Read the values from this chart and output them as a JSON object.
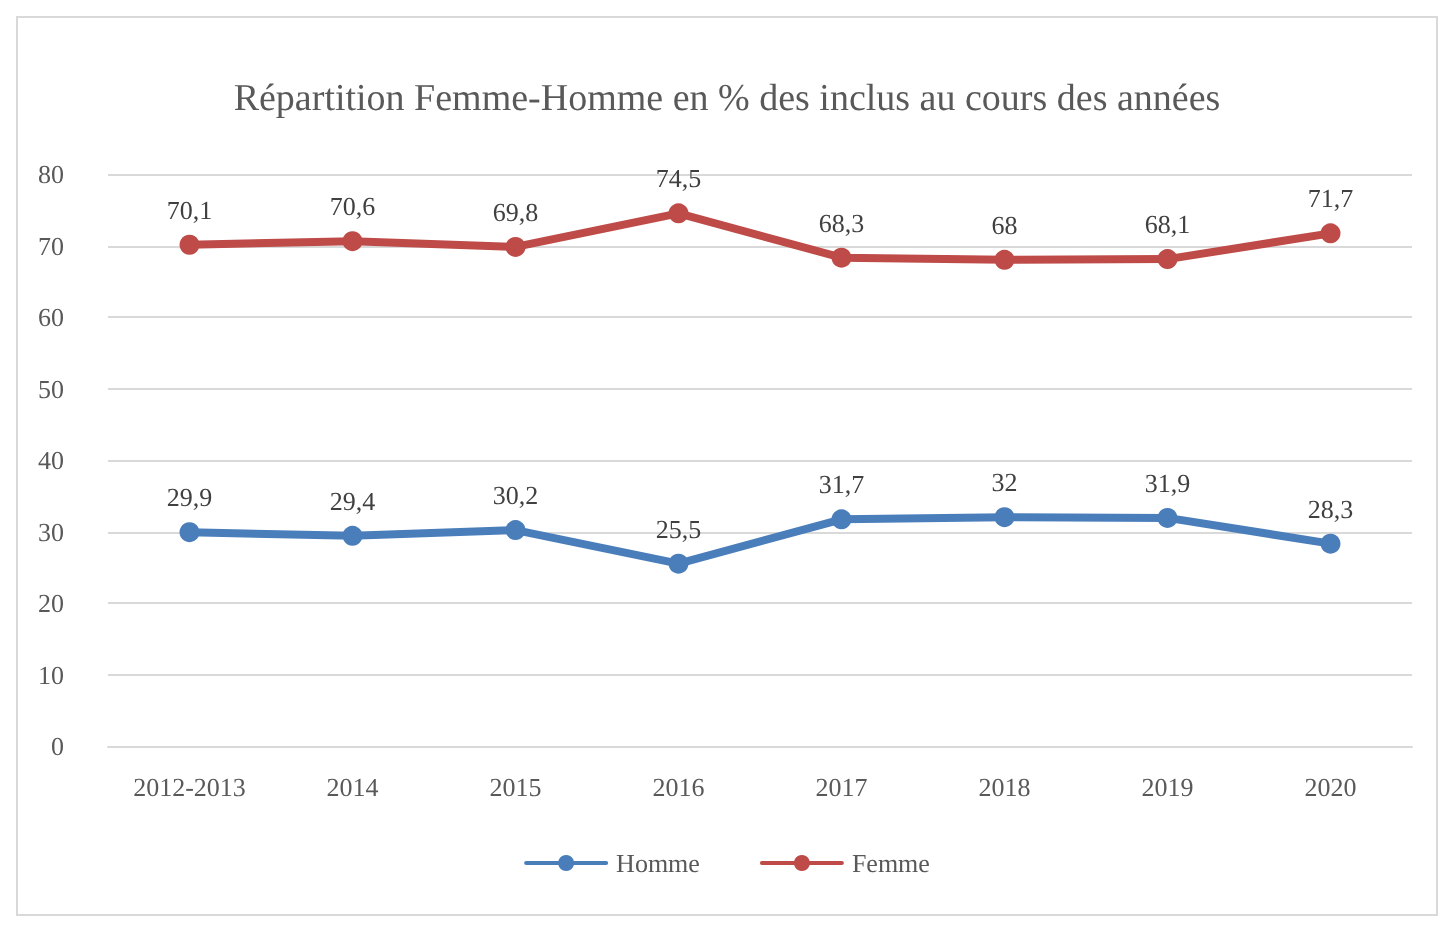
{
  "chart_data": {
    "type": "line",
    "title": "Répartition Femme-Homme en % des inclus au cours des années",
    "categories": [
      "2012-2013",
      "2014",
      "2015",
      "2016",
      "2017",
      "2018",
      "2019",
      "2020"
    ],
    "series": [
      {
        "name": "Homme",
        "color": "#4a7ebb",
        "values": [
          29.9,
          29.4,
          30.2,
          25.5,
          31.7,
          32,
          31.9,
          28.3
        ],
        "value_labels": [
          "29,9",
          "29,4",
          "30,2",
          "25,5",
          "31,7",
          "32",
          "31,9",
          "28,3"
        ]
      },
      {
        "name": "Femme",
        "color": "#be4b48",
        "values": [
          70.1,
          70.6,
          69.8,
          74.5,
          68.3,
          68,
          68.1,
          71.7
        ],
        "value_labels": [
          "70,1",
          "70,6",
          "69,8",
          "74,5",
          "68,3",
          "68",
          "68,1",
          "71,7"
        ]
      }
    ],
    "ylim": [
      0,
      80
    ],
    "yticks": [
      0,
      10,
      20,
      30,
      40,
      50,
      60,
      70,
      80
    ],
    "grid": "y",
    "legend": "bottom",
    "marker": "circle",
    "line_style": "solid"
  }
}
